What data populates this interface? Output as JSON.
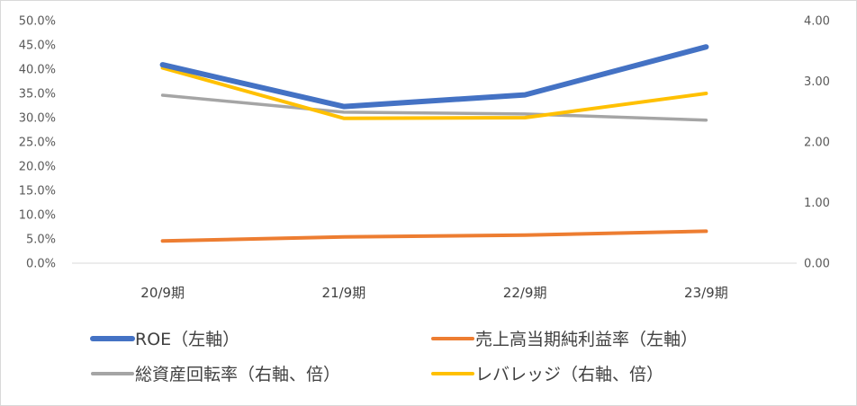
{
  "chart_data": {
    "type": "line",
    "categories": [
      "20/9期",
      "21/9期",
      "22/9期",
      "23/9期"
    ],
    "y_left": {
      "min": 0,
      "max": 0.5,
      "step": 0.05,
      "tick_labels": [
        "0.0%",
        "5.0%",
        "10.0%",
        "15.0%",
        "20.0%",
        "25.0%",
        "30.0%",
        "35.0%",
        "40.0%",
        "45.0%",
        "50.0%"
      ]
    },
    "y_right": {
      "min": 0,
      "max": 4,
      "step": 1,
      "tick_labels": [
        "0.00",
        "1.00",
        "2.00",
        "3.00",
        "4.00"
      ]
    },
    "series": [
      {
        "name": "ROE（左軸）",
        "axis": "left",
        "color": "#4472C4",
        "values": [
          0.409,
          0.323,
          0.347,
          0.446
        ]
      },
      {
        "name": "売上高当期純利益率（左軸）",
        "axis": "left",
        "color": "#ED7D31",
        "values": [
          0.046,
          0.054,
          0.058,
          0.066
        ]
      },
      {
        "name": "総資産回転率（右軸、倍）",
        "axis": "right",
        "color": "#A5A5A5",
        "values": [
          2.77,
          2.49,
          2.46,
          2.36
        ]
      },
      {
        "name": "レバレッジ（右軸、倍）",
        "axis": "right",
        "color": "#FFC000",
        "values": [
          3.22,
          2.39,
          2.4,
          2.8
        ]
      }
    ],
    "gridlines": false,
    "legend_position": "bottom"
  }
}
